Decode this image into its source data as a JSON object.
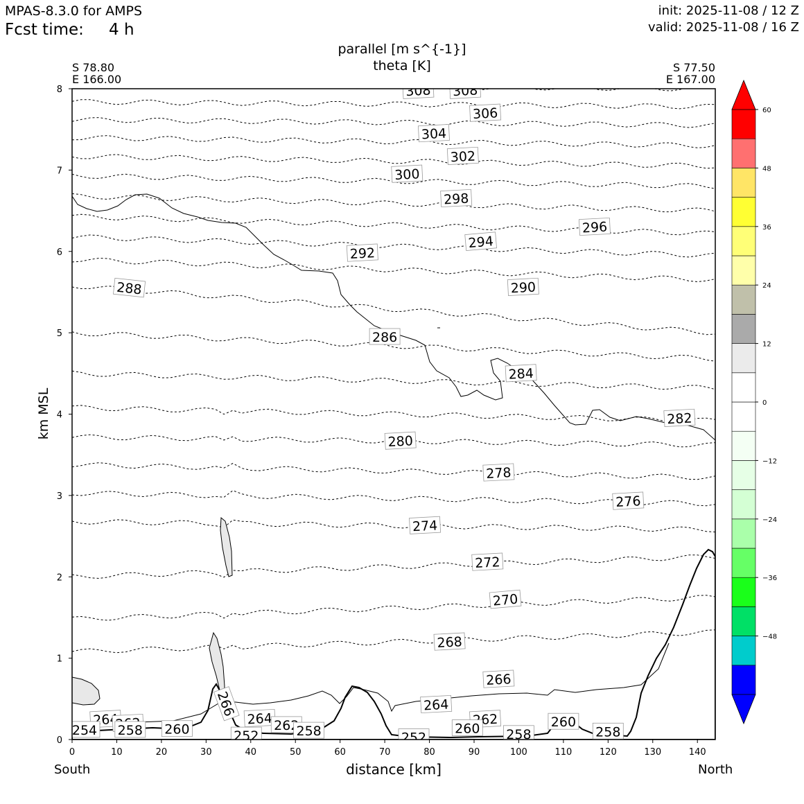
{
  "header": {
    "model": "MPAS-8.3.0 for AMPS",
    "fcst_label": "Fcst time:",
    "fcst_value": "4 h",
    "init": "init: 2025-11-08 / 12 Z",
    "valid": "valid: 2025-11-08 / 16 Z"
  },
  "chart_data": {
    "type": "contour",
    "title": [
      "parallel [m s^{-1}]",
      "theta [K]"
    ],
    "xlabel": "distance [km]",
    "ylabel": "km MSL",
    "xlim": [
      0,
      144
    ],
    "ylim": [
      0,
      8
    ],
    "xticks": [
      "0",
      "10",
      "20",
      "30",
      "40",
      "50",
      "60",
      "70",
      "80",
      "90",
      "100",
      "110",
      "120",
      "130",
      "140"
    ],
    "yticks": [
      "0",
      "1",
      "2",
      "3",
      "4",
      "5",
      "6",
      "7",
      "8"
    ],
    "endpoints": {
      "left": {
        "lat": "S 78.80",
        "lon": "E 166.00",
        "label": "South"
      },
      "right": {
        "lat": "S 77.50",
        "lon": "E 167.00",
        "label": "North"
      }
    },
    "theta_levels": [
      {
        "value": 268,
        "y0": 1.08,
        "y1": 1.32
      },
      {
        "value": 270,
        "y0": 1.48,
        "y1": 1.75
      },
      {
        "value": 272,
        "y0": 2.0,
        "y1": 2.25
      },
      {
        "value": 274,
        "y0": 2.68,
        "y1": 2.58
      },
      {
        "value": 276,
        "y0": 3.03,
        "y1": 2.9
      },
      {
        "value": 278,
        "y0": 3.38,
        "y1": 3.22
      },
      {
        "value": 280,
        "y0": 3.72,
        "y1": 3.62
      },
      {
        "value": 282,
        "y0": 4.08,
        "y1": 3.92
      },
      {
        "value": 284,
        "y0": 4.5,
        "y1": 4.32
      },
      {
        "value": 286,
        "y0": 5.0,
        "y1": 4.68
      },
      {
        "value": 288,
        "y0": 5.58,
        "y1": 5.0
      },
      {
        "value": 290,
        "y0": 5.9,
        "y1": 5.65
      },
      {
        "value": 292,
        "y0": 6.18,
        "y1": 5.95
      },
      {
        "value": 294,
        "y0": 6.43,
        "y1": 6.22
      },
      {
        "value": 296,
        "y0": 6.68,
        "y1": 6.5
      },
      {
        "value": 298,
        "y0": 6.93,
        "y1": 6.8
      },
      {
        "value": 300,
        "y0": 7.17,
        "y1": 7.05
      },
      {
        "value": 302,
        "y0": 7.4,
        "y1": 7.3
      },
      {
        "value": 304,
        "y0": 7.62,
        "y1": 7.55
      },
      {
        "value": 306,
        "y0": 7.84,
        "y1": 7.78
      },
      {
        "value": 308,
        "y0": 8.05,
        "y1": 8.0
      }
    ],
    "theta_labels": [
      {
        "text": "308",
        "x": 77.5,
        "y": 7.98,
        "rot": -3
      },
      {
        "text": "308",
        "x": 88,
        "y": 7.98,
        "rot": -3
      },
      {
        "text": "306",
        "x": 92.5,
        "y": 7.7,
        "rot": -3
      },
      {
        "text": "304",
        "x": 81,
        "y": 7.45,
        "rot": -3
      },
      {
        "text": "302",
        "x": 87.5,
        "y": 7.17,
        "rot": -3
      },
      {
        "text": "300",
        "x": 75,
        "y": 6.95,
        "rot": -3
      },
      {
        "text": "298",
        "x": 86,
        "y": 6.65,
        "rot": -3
      },
      {
        "text": "296",
        "x": 117,
        "y": 6.3,
        "rot": -3
      },
      {
        "text": "294",
        "x": 91.5,
        "y": 6.12,
        "rot": -5
      },
      {
        "text": "292",
        "x": 65,
        "y": 5.98,
        "rot": -3
      },
      {
        "text": "290",
        "x": 101,
        "y": 5.56,
        "rot": -3
      },
      {
        "text": "288",
        "x": 12.8,
        "y": 5.55,
        "rot": 6
      },
      {
        "text": "286",
        "x": 70,
        "y": 4.95,
        "rot": 0
      },
      {
        "text": "284",
        "x": 100.5,
        "y": 4.5,
        "rot": -3
      },
      {
        "text": "282",
        "x": 136,
        "y": 3.95,
        "rot": -3
      },
      {
        "text": "280",
        "x": 73.5,
        "y": 3.67,
        "rot": -3
      },
      {
        "text": "278",
        "x": 95.5,
        "y": 3.28,
        "rot": -3
      },
      {
        "text": "276",
        "x": 124.5,
        "y": 2.93,
        "rot": -3
      },
      {
        "text": "274",
        "x": 79,
        "y": 2.63,
        "rot": -3
      },
      {
        "text": "272",
        "x": 93,
        "y": 2.18,
        "rot": -3
      },
      {
        "text": "270",
        "x": 97,
        "y": 1.72,
        "rot": -5
      },
      {
        "text": "268",
        "x": 84.5,
        "y": 1.2,
        "rot": -3
      },
      {
        "text": "266",
        "x": 95.5,
        "y": 0.74,
        "rot": -3
      },
      {
        "text": "264",
        "x": 81.5,
        "y": 0.43,
        "rot": -3
      },
      {
        "text": "262",
        "x": 92.5,
        "y": 0.25,
        "rot": -3
      },
      {
        "text": "260",
        "x": 110,
        "y": 0.22,
        "rot": 0
      },
      {
        "text": "258",
        "x": 120,
        "y": 0.1,
        "rot": 0
      },
      {
        "text": "266",
        "x": 34.5,
        "y": 0.44,
        "rot": 70
      },
      {
        "text": "264",
        "x": 7.5,
        "y": 0.25,
        "rot": -3
      },
      {
        "text": "262",
        "x": 12.5,
        "y": 0.2,
        "rot": -3
      },
      {
        "text": "264",
        "x": 42,
        "y": 0.26,
        "rot": -3
      },
      {
        "text": "262",
        "x": 48,
        "y": 0.18,
        "rot": 0
      },
      {
        "text": "260",
        "x": 23.5,
        "y": 0.13,
        "rot": 0
      },
      {
        "text": "258",
        "x": 13,
        "y": 0.12,
        "rot": 0
      },
      {
        "text": "254",
        "x": 2.8,
        "y": 0.12,
        "rot": 0
      },
      {
        "text": "258",
        "x": 53,
        "y": 0.11,
        "rot": 0
      },
      {
        "text": "260",
        "x": 88.5,
        "y": 0.14,
        "rot": 0
      },
      {
        "text": "258",
        "x": 100,
        "y": 0.07,
        "rot": 0
      },
      {
        "text": "252",
        "x": 39,
        "y": 0.05,
        "rot": 0
      },
      {
        "text": "252",
        "x": 76.5,
        "y": 0.03,
        "rot": 0
      }
    ],
    "colorbar": {
      "ticks": [
        "60",
        "48",
        "36",
        "24",
        "12",
        "0",
        "−12",
        "−24",
        "−36",
        "−48"
      ],
      "tick_values": [
        60,
        48,
        36,
        24,
        12,
        0,
        -12,
        -24,
        -36,
        -48
      ],
      "bins": [
        {
          "from": -60,
          "to": -54,
          "color": "#0000ff"
        },
        {
          "from": -54,
          "to": -48,
          "color": "#00cccc"
        },
        {
          "from": -48,
          "to": -42,
          "color": "#00e066"
        },
        {
          "from": -42,
          "to": -36,
          "color": "#1aff1a"
        },
        {
          "from": -36,
          "to": -30,
          "color": "#66ff66"
        },
        {
          "from": -30,
          "to": -24,
          "color": "#aaffaa"
        },
        {
          "from": -24,
          "to": -18,
          "color": "#d4ffd4"
        },
        {
          "from": -18,
          "to": -12,
          "color": "#e6ffe6"
        },
        {
          "from": -12,
          "to": -6,
          "color": "#f4fff4"
        },
        {
          "from": -6,
          "to": 0,
          "color": "#ffffff"
        },
        {
          "from": 0,
          "to": 6,
          "color": "#ffffff"
        },
        {
          "from": 6,
          "to": 12,
          "color": "#ebebeb"
        },
        {
          "from": 12,
          "to": 18,
          "color": "#aaaaaa"
        },
        {
          "from": 18,
          "to": 24,
          "color": "#c0c0aa"
        },
        {
          "from": 24,
          "to": 30,
          "color": "#ffffaa"
        },
        {
          "from": 30,
          "to": 36,
          "color": "#ffff77"
        },
        {
          "from": 36,
          "to": 42,
          "color": "#ffff33"
        },
        {
          "from": 42,
          "to": 48,
          "color": "#ffe566"
        },
        {
          "from": 48,
          "to": 54,
          "color": "#ff7070"
        },
        {
          "from": 54,
          "to": 60,
          "color": "#ff0000"
        }
      ],
      "under_color": "#0000ff",
      "over_color": "#ff0000"
    }
  }
}
